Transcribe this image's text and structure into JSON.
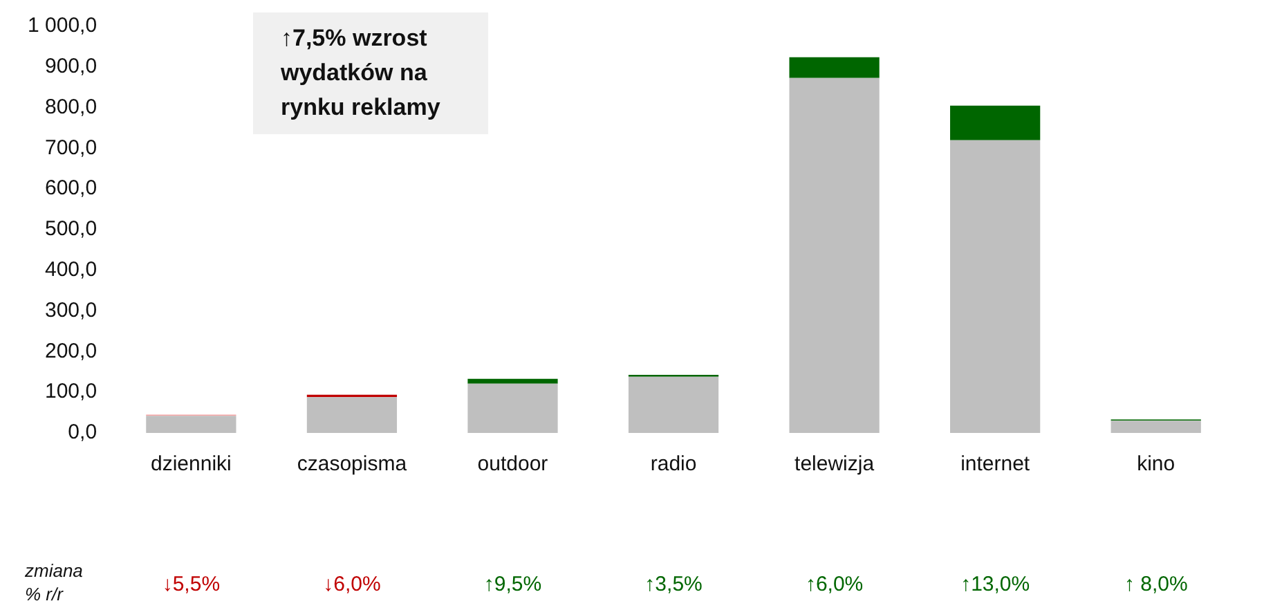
{
  "chart_data": {
    "type": "bar",
    "stacked": true,
    "categories": [
      "dzienniki",
      "czasopisma",
      "outdoor",
      "radio",
      "telewizja",
      "internet",
      "kino"
    ],
    "series": [
      {
        "color": "#bfbfbf",
        "values": [
          42,
          88,
          121,
          138,
          873,
          720,
          30
        ]
      },
      {
        "colors": [
          "#f4a3a3",
          "#c00000",
          "#006600",
          "#006600",
          "#006600",
          "#006600",
          "#006600"
        ],
        "values": [
          3,
          6,
          12,
          5,
          51,
          85,
          3
        ]
      }
    ],
    "ylim": [
      0,
      1000
    ],
    "yticks": [
      {
        "value": 0,
        "label": "0,0"
      },
      {
        "value": 100,
        "label": "100,0"
      },
      {
        "value": 200,
        "label": "200,0"
      },
      {
        "value": 300,
        "label": "300,0"
      },
      {
        "value": 400,
        "label": "400,0"
      },
      {
        "value": 500,
        "label": "500,0"
      },
      {
        "value": 600,
        "label": "600,0"
      },
      {
        "value": 700,
        "label": "700,0"
      },
      {
        "value": 800,
        "label": "800,0"
      },
      {
        "value": 900,
        "label": "900,0"
      },
      {
        "value": 1000,
        "label": "1 000,0"
      }
    ],
    "grid": false,
    "legend": false,
    "annotations": [
      "↑7,5% wzrost wydatków na rynku reklamy",
      "zmiana % r/r",
      "↓5,5%",
      "↓6,0%",
      "↑9,5%",
      "↑3,5%",
      "↑6,0%",
      "↑13,0%",
      "↑ 8,0%"
    ]
  }
}
